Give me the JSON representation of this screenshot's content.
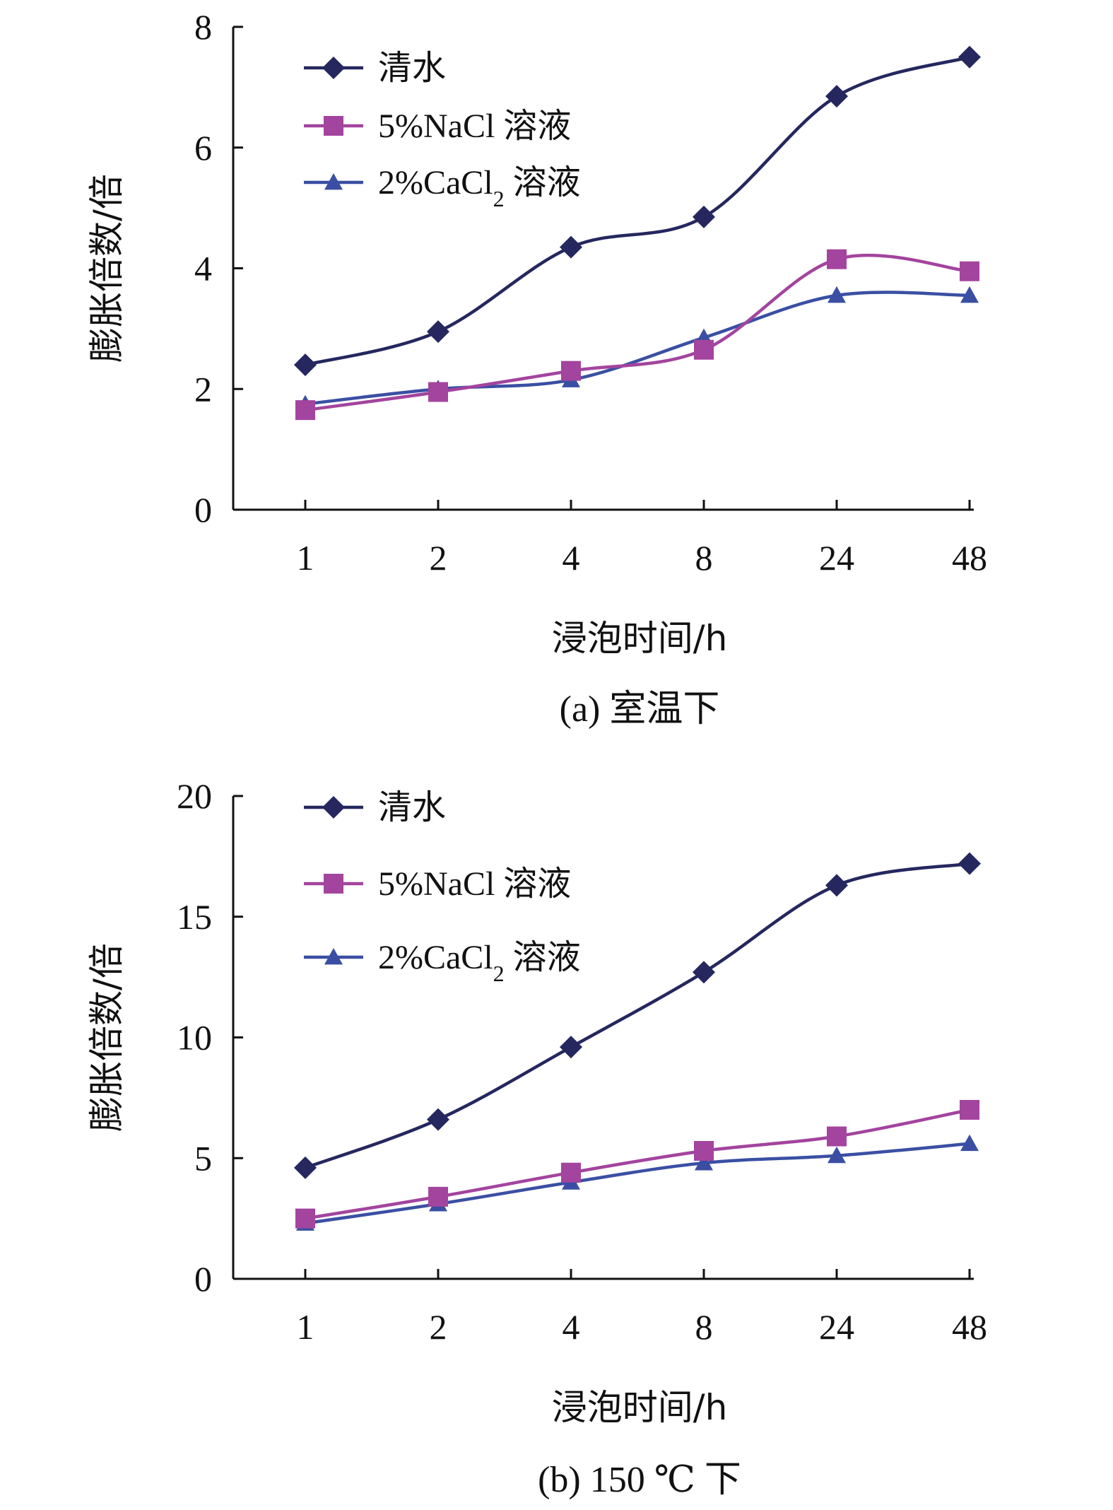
{
  "chart_data": [
    {
      "type": "line",
      "caption": "(a) 室温下",
      "xlabel": "浸泡时间/h",
      "ylabel": "膨胀倍数/倍",
      "categories": [
        "1",
        "2",
        "4",
        "8",
        "24",
        "48"
      ],
      "ylim": [
        0,
        8
      ],
      "yticks": [
        "0",
        "2",
        "4",
        "6",
        "8"
      ],
      "legend_position": "top-left",
      "series": [
        {
          "name": "清水",
          "marker": "diamond",
          "color": "#25275e",
          "values": [
            2.4,
            2.95,
            4.35,
            4.85,
            6.85,
            7.5
          ]
        },
        {
          "name": "5%NaCl 溶液",
          "marker": "square",
          "color": "#a3449e",
          "values": [
            1.65,
            1.95,
            2.3,
            2.65,
            4.15,
            3.95
          ]
        },
        {
          "name": "2%CaCl2 溶液",
          "marker": "triangle",
          "color": "#3a4fa3",
          "values": [
            1.75,
            2.0,
            2.15,
            2.85,
            3.55,
            3.55
          ]
        }
      ]
    },
    {
      "type": "line",
      "caption": "(b) 150 ℃ 下",
      "xlabel": "浸泡时间/h",
      "ylabel": "膨胀倍数/倍",
      "categories": [
        "1",
        "2",
        "4",
        "8",
        "24",
        "48"
      ],
      "ylim": [
        0,
        20
      ],
      "yticks": [
        "0",
        "5",
        "10",
        "15",
        "20"
      ],
      "legend_position": "top-left",
      "series": [
        {
          "name": "清水",
          "marker": "diamond",
          "color": "#25275e",
          "values": [
            4.6,
            6.6,
            9.6,
            12.7,
            16.3,
            17.2
          ]
        },
        {
          "name": "5%NaCl 溶液",
          "marker": "square",
          "color": "#a3449e",
          "values": [
            2.5,
            3.4,
            4.4,
            5.3,
            5.9,
            7.0
          ]
        },
        {
          "name": "2%CaCl2 溶液",
          "marker": "triangle",
          "color": "#3a4fa3",
          "values": [
            2.3,
            3.1,
            4.0,
            4.8,
            5.1,
            5.6
          ]
        }
      ]
    }
  ]
}
